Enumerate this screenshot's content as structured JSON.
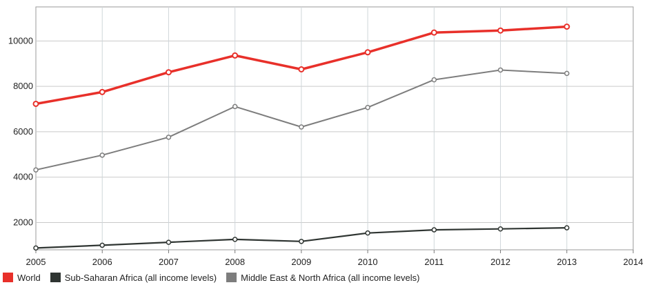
{
  "chart_data": {
    "type": "line",
    "x": [
      2005,
      2006,
      2007,
      2008,
      2009,
      2010,
      2011,
      2012,
      2013
    ],
    "x_ticks": [
      "2005",
      "2006",
      "2007",
      "2008",
      "2009",
      "2010",
      "2011",
      "2012",
      "2013",
      "2014"
    ],
    "y_ticks": [
      "2000",
      "4000",
      "6000",
      "8000",
      "10000"
    ],
    "xlim": [
      2005,
      2014
    ],
    "ylim": [
      800,
      11500
    ],
    "grid": true,
    "legend_position": "bottom",
    "series": [
      {
        "name": "World",
        "color": "#e8302a",
        "values": [
          7230,
          7750,
          8620,
          9360,
          8750,
          9500,
          10370,
          10460,
          10630
        ]
      },
      {
        "name": "Sub-Saharan Africa (all income levels)",
        "color": "#2f3532",
        "values": [
          880,
          1000,
          1130,
          1260,
          1170,
          1540,
          1680,
          1720,
          1770
        ]
      },
      {
        "name": "Middle East & North Africa (all income levels)",
        "color": "#7d7d7d",
        "values": [
          4320,
          4970,
          5760,
          7110,
          6210,
          7070,
          8290,
          8720,
          8570
        ]
      }
    ]
  }
}
